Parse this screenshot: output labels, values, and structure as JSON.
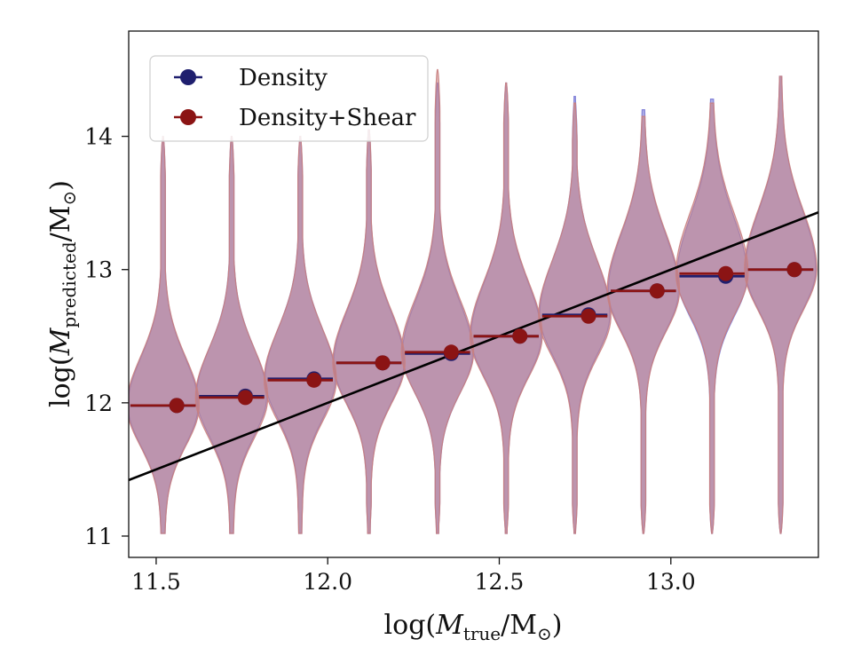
{
  "chart_data": {
    "type": "violin",
    "xlabel": "log(M_true/M_⊙)",
    "xlabel_parts": {
      "prefix": "log(",
      "var": "M",
      "sub": "true",
      "suffix": "/M",
      "sun_sub": "⊙",
      "close": ")"
    },
    "ylabel": "log(M_predicted/M_⊙)",
    "ylabel_parts": {
      "prefix": "log(",
      "var": "M",
      "sub": "predicted",
      "suffix": "/M",
      "sun_sub": "⊙",
      "close": ")"
    },
    "xlim": [
      11.42,
      13.43
    ],
    "ylim": [
      10.84,
      14.79
    ],
    "xticks": [
      11.5,
      12.0,
      12.5,
      13.0
    ],
    "xtick_labels": [
      "11.5",
      "12.0",
      "12.5",
      "13.0"
    ],
    "yticks": [
      11,
      12,
      13,
      14
    ],
    "ytick_labels": [
      "11",
      "12",
      "13",
      "14"
    ],
    "grid": false,
    "legend_position": "top-left",
    "reference_line": {
      "x": [
        11.42,
        13.43
      ],
      "y": [
        11.42,
        13.43
      ],
      "color": "#000000"
    },
    "bin_centers": [
      11.52,
      11.72,
      11.92,
      12.12,
      12.32,
      12.52,
      12.72,
      12.92,
      13.12,
      13.32
    ],
    "series": [
      {
        "name": "Density",
        "color": "#1f1f6e",
        "fill": "#7b7bd6",
        "medians": [
          11.98,
          12.05,
          12.18,
          12.3,
          12.37,
          12.5,
          12.66,
          12.84,
          12.95,
          13.0
        ],
        "y_min": [
          11.02,
          11.02,
          11.02,
          11.02,
          11.02,
          11.02,
          11.02,
          11.02,
          11.02,
          11.02
        ],
        "y_max": [
          14.0,
          14.0,
          14.0,
          14.05,
          14.4,
          14.4,
          14.3,
          14.2,
          14.28,
          14.45
        ]
      },
      {
        "name": "Density+Shear",
        "color": "#8b1414",
        "fill": "#c98080",
        "medians": [
          11.98,
          12.04,
          12.17,
          12.3,
          12.38,
          12.5,
          12.65,
          12.84,
          12.97,
          13.0
        ],
        "y_min": [
          11.02,
          11.02,
          11.02,
          11.02,
          11.02,
          11.02,
          11.02,
          11.02,
          11.02,
          11.02
        ],
        "y_max": [
          14.0,
          14.0,
          14.0,
          14.05,
          14.5,
          14.4,
          14.25,
          14.15,
          14.25,
          14.45
        ]
      }
    ]
  }
}
